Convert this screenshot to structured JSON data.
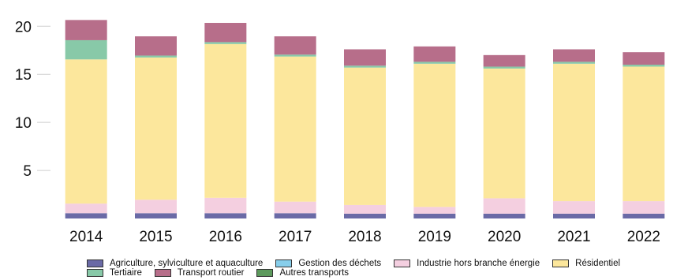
{
  "chart_data": {
    "type": "bar",
    "stacked": true,
    "title": "",
    "xlabel": "",
    "ylabel": "",
    "categories": [
      "2014",
      "2015",
      "2016",
      "2017",
      "2018",
      "2019",
      "2020",
      "2021",
      "2022"
    ],
    "ylim": [
      0,
      21.5
    ],
    "yticks": [
      5,
      10,
      15,
      20
    ],
    "grid": false,
    "legend_position": "bottom",
    "series": [
      {
        "name": "Agriculture, sylviculture et aquaculture",
        "color": "#6a6aa6",
        "values": [
          0.55,
          0.55,
          0.55,
          0.55,
          0.5,
          0.5,
          0.5,
          0.5,
          0.5
        ]
      },
      {
        "name": "Gestion des déchets",
        "color": "#87ceeb",
        "values": [
          0,
          0,
          0,
          0,
          0,
          0,
          0,
          0,
          0
        ]
      },
      {
        "name": "Industrie hors branche énergie",
        "color": "#f4cfe0",
        "values": [
          1.0,
          1.4,
          1.6,
          1.2,
          0.9,
          0.7,
          1.6,
          1.3,
          1.3
        ]
      },
      {
        "name": "Résidentiel",
        "color": "#fce79c",
        "values": [
          15.0,
          14.8,
          16.0,
          15.1,
          14.3,
          14.9,
          13.5,
          14.3,
          14.0
        ]
      },
      {
        "name": "Tertiaire",
        "color": "#88c9a8",
        "values": [
          2.0,
          0.2,
          0.2,
          0.2,
          0.2,
          0.2,
          0.2,
          0.2,
          0.2
        ]
      },
      {
        "name": "Transport routier",
        "color": "#b76e8a",
        "values": [
          2.1,
          2.0,
          2.0,
          1.9,
          1.7,
          1.6,
          1.2,
          1.3,
          1.3
        ]
      },
      {
        "name": "Autres transports",
        "color": "#5d9a5d",
        "values": [
          0,
          0,
          0,
          0,
          0,
          0,
          0,
          0,
          0
        ]
      }
    ]
  }
}
